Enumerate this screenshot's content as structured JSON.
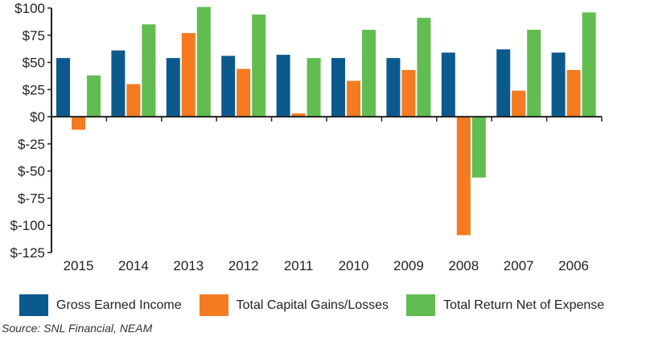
{
  "chart_data": {
    "type": "bar",
    "categories": [
      "2015",
      "2014",
      "2013",
      "2012",
      "2011",
      "2010",
      "2009",
      "2008",
      "2007",
      "2006"
    ],
    "series": [
      {
        "name": "Gross Earned Income",
        "color": "#0b5a8e",
        "values": [
          54,
          61,
          54,
          56,
          57,
          54,
          54,
          59,
          62,
          59
        ]
      },
      {
        "name": "Total Capital Gains/Losses",
        "color": "#f47b20",
        "values": [
          -12,
          30,
          77,
          44,
          3,
          33,
          43,
          -109,
          24,
          43
        ]
      },
      {
        "name": "Total Return Net of Expense",
        "color": "#61bd4f",
        "values": [
          38,
          85,
          101,
          94,
          54,
          80,
          91,
          -56,
          80,
          96
        ]
      }
    ],
    "ylim": [
      -125,
      100
    ],
    "yticks": [
      100,
      75,
      50,
      25,
      0,
      -25,
      -50,
      -75,
      -100,
      -125
    ],
    "ytick_labels": [
      "$100",
      "$75",
      "$50",
      "$25",
      "$0",
      "$-25",
      "$-50",
      "$-75",
      "$-100",
      "$-125"
    ],
    "legend_position": "bottom",
    "source": "Source: SNL Financial, NEAM"
  }
}
